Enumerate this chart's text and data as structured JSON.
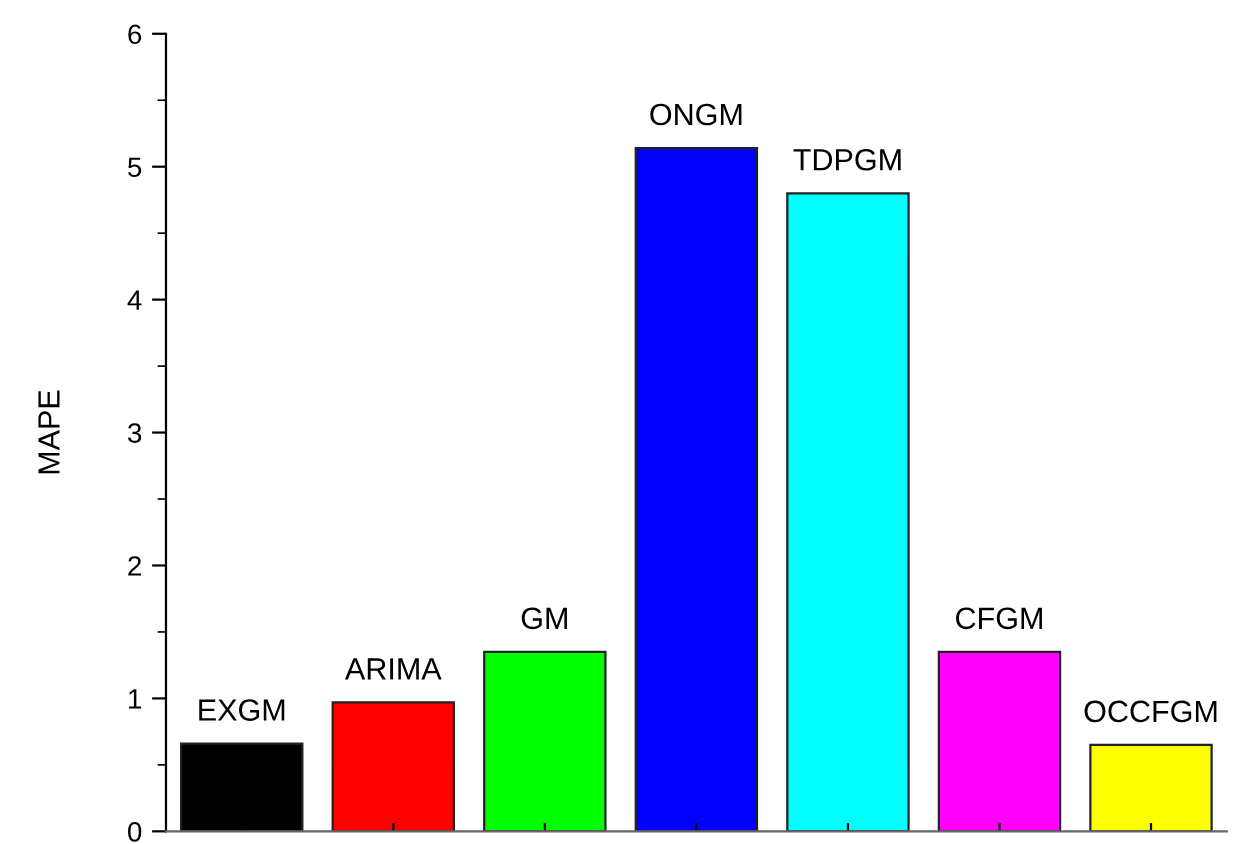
{
  "chart_data": {
    "type": "bar",
    "ylabel": "MAPE",
    "categories": [
      "EXGM",
      "ARIMA",
      "GM",
      "ONGM",
      "TDPGM",
      "CFGM",
      "OCCFGM"
    ],
    "values": [
      0.66,
      0.97,
      1.35,
      5.14,
      4.8,
      1.35,
      0.65
    ],
    "colors": [
      "#000000",
      "#ff0000",
      "#00ff00",
      "#0000ff",
      "#00ffff",
      "#ff00ff",
      "#ffff00"
    ],
    "ylim": [
      0,
      6
    ],
    "yticks": [
      0,
      1,
      2,
      3,
      4,
      5,
      6
    ],
    "tick_labels": "y",
    "grid": false
  }
}
